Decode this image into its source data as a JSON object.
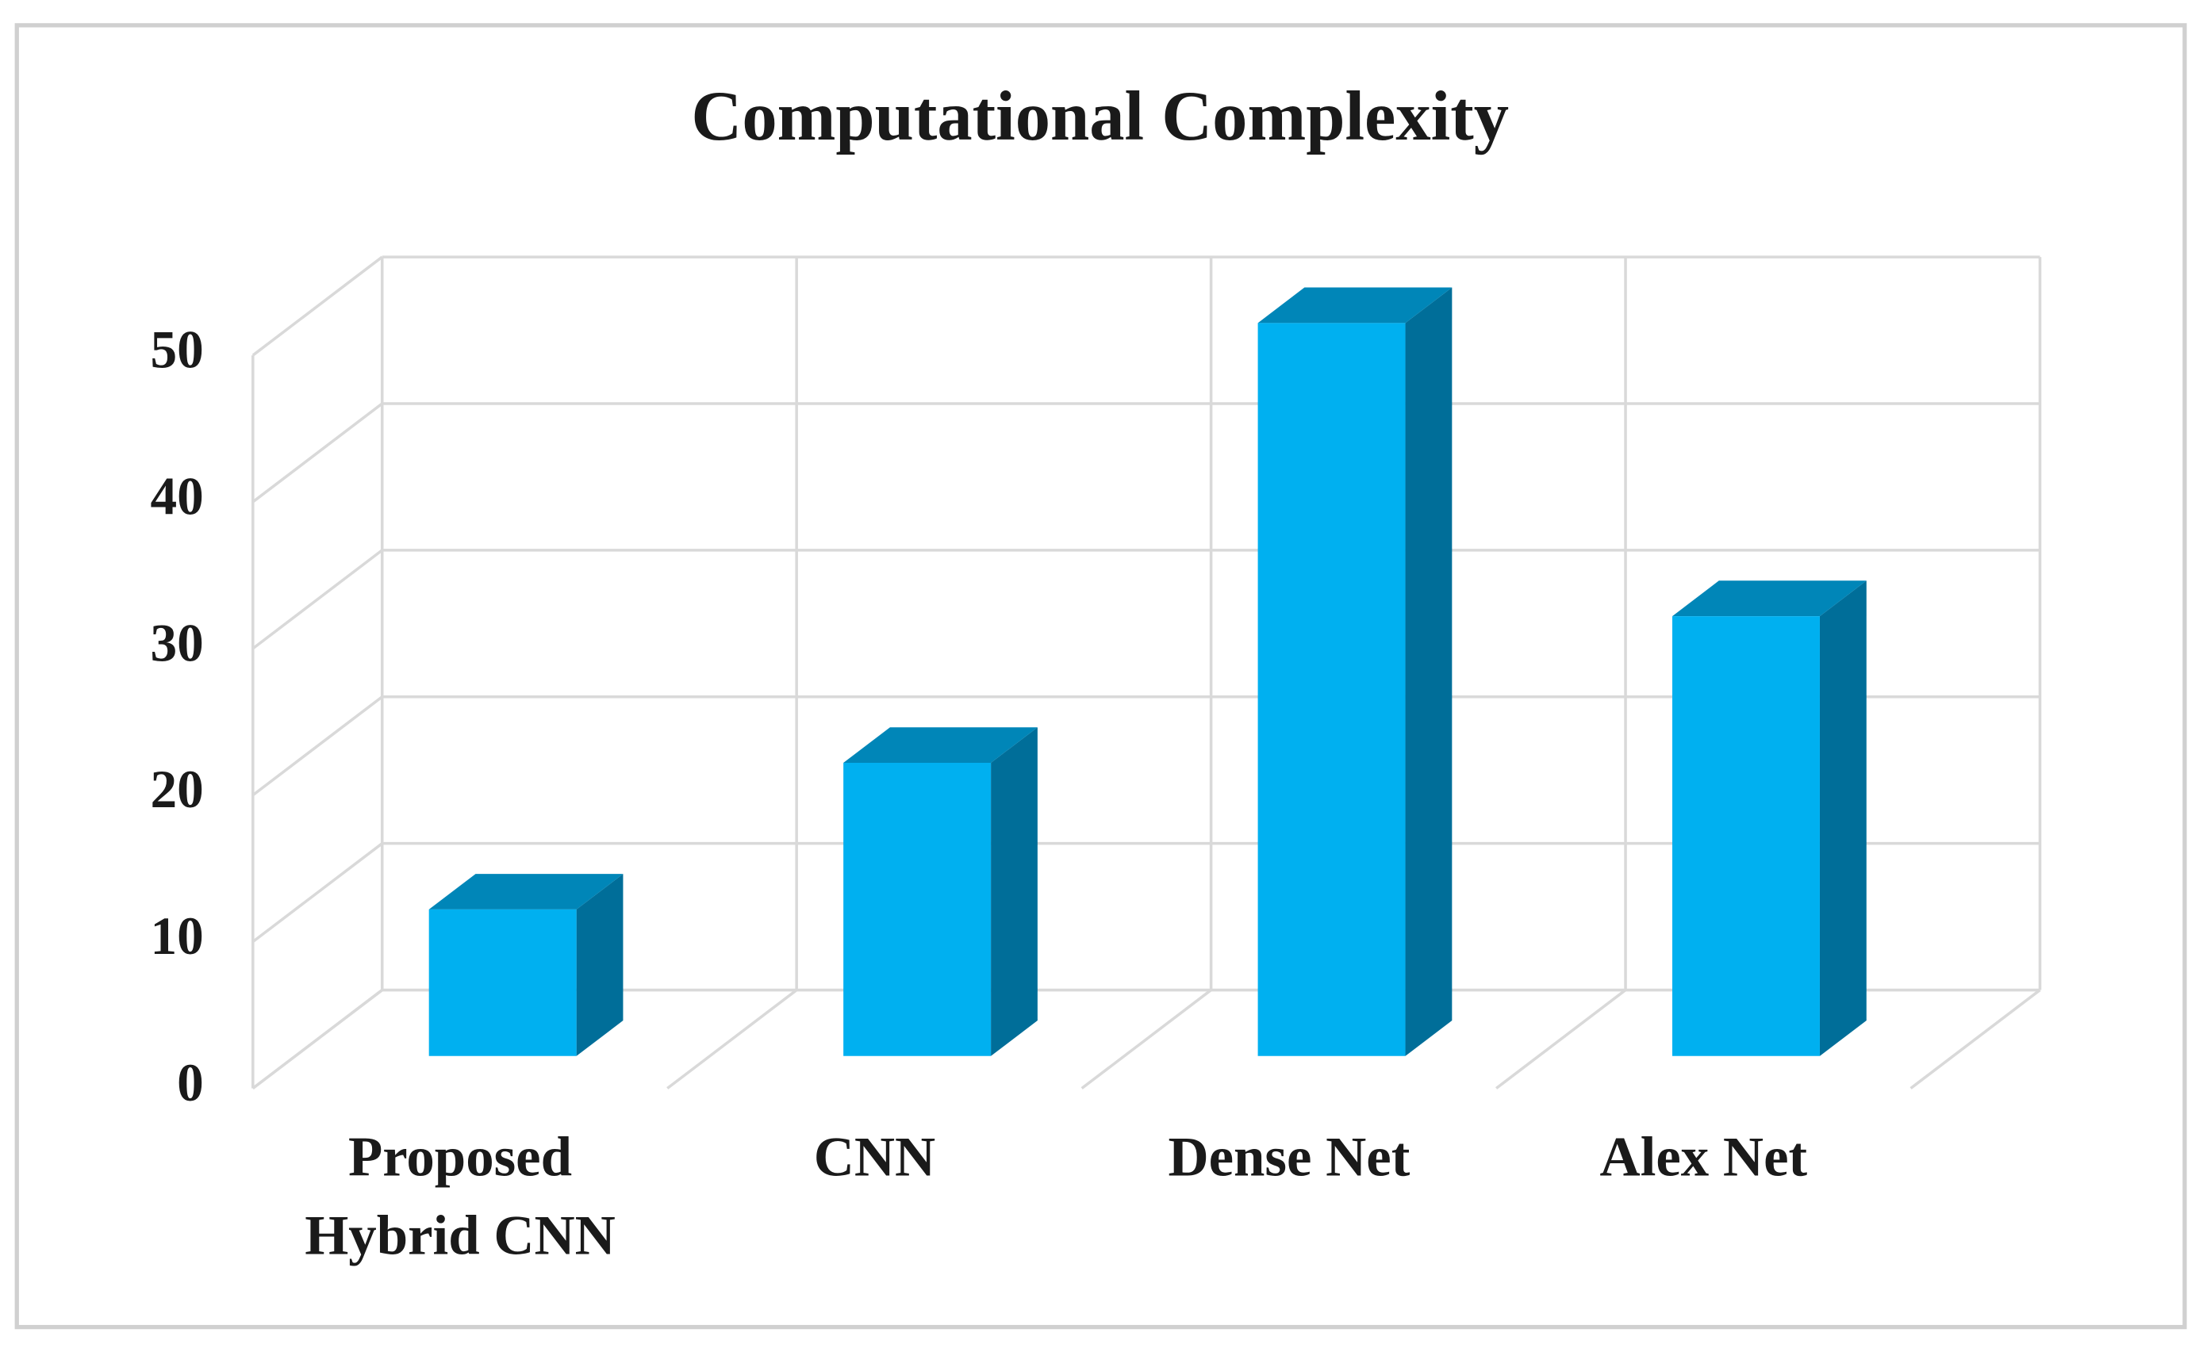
{
  "chart_data": {
    "type": "bar3d",
    "title": "Computational Complexity",
    "categories": [
      "Proposed Hybrid CNN",
      "CNN",
      "Dense Net",
      "Alex Net"
    ],
    "values": [
      10,
      20,
      50,
      30
    ],
    "color": "#00b0f0",
    "ylim": [
      0,
      50
    ],
    "yticks": [
      0,
      10,
      20,
      30,
      40,
      50
    ],
    "grid": true
  }
}
